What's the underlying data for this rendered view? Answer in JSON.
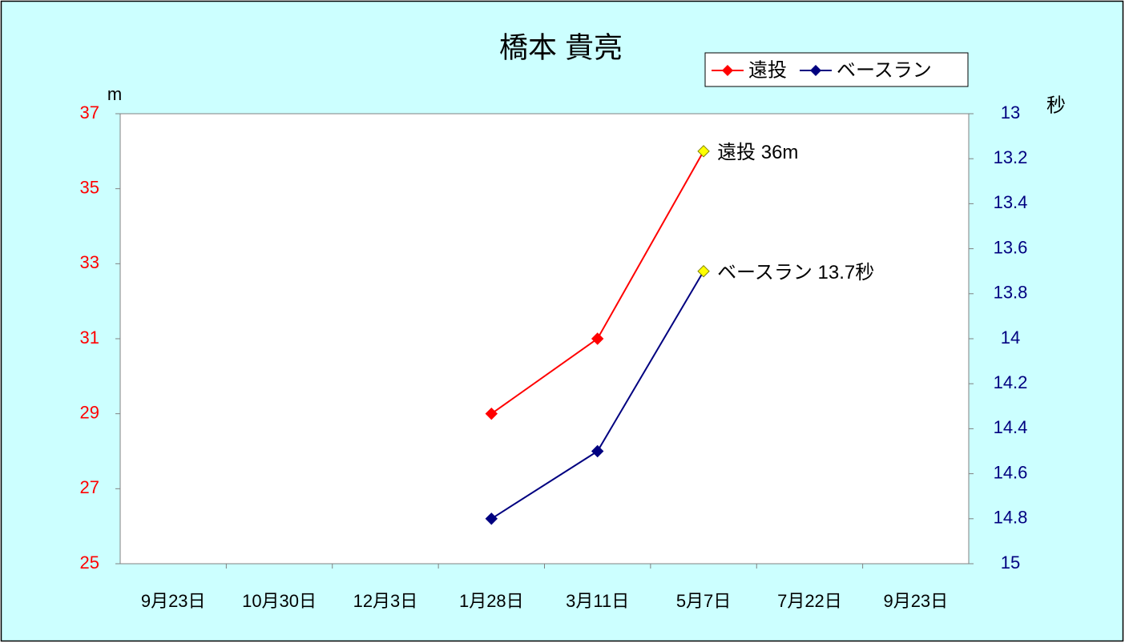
{
  "chart_data": {
    "type": "line",
    "title": "橋本 貴亮",
    "categories": [
      "9月23日",
      "10月30日",
      "12月3日",
      "1月28日",
      "3月11日",
      "5月7日",
      "7月22日",
      "9月23日"
    ],
    "series": [
      {
        "name": "遠投",
        "color": "#ff0000",
        "values": [
          null,
          null,
          null,
          29,
          31,
          36,
          null,
          null
        ],
        "value_labels": [
          null,
          null,
          null,
          null,
          null,
          "遠投 36m",
          null,
          null
        ]
      },
      {
        "name": "ベースラン",
        "color": "#000080",
        "axis": "y2",
        "values": [
          null,
          null,
          null,
          14.8,
          14.5,
          13.7,
          null,
          null
        ],
        "value_labels": [
          null,
          null,
          null,
          null,
          null,
          "ベースラン 13.7秒",
          null,
          null
        ]
      }
    ],
    "highlight_color": "#ffff00",
    "y_label": "m",
    "y2_label": "秒",
    "ylim": [
      25,
      37
    ],
    "yticks": [
      25,
      27,
      29,
      31,
      33,
      35,
      37
    ],
    "ytick_color": "#ff0000",
    "y2lim": [
      15,
      13
    ],
    "y2ticks": [
      15,
      14.8,
      14.6,
      14.4,
      14.2,
      14,
      13.8,
      13.6,
      13.4,
      13.2,
      13
    ],
    "y2tick_color": "#000080",
    "grid": false,
    "legend": "top-right"
  }
}
